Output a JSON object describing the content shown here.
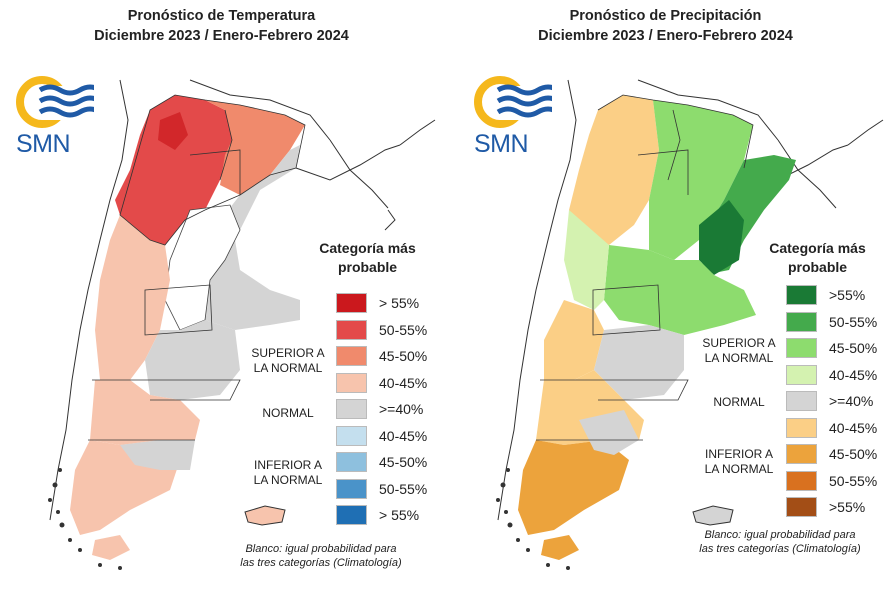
{
  "temperature": {
    "title_line1": "Pronóstico de Temperatura",
    "title_line2": "Diciembre 2023 / Enero-Febrero 2024",
    "legend_title_line1": "Categoría más",
    "legend_title_line2": "probable",
    "upper_label_line1": "SUPERIOR A",
    "upper_label_line2": "LA NORMAL",
    "normal_label": "NORMAL",
    "lower_label_line1": "INFERIOR A",
    "lower_label_line2": "LA NORMAL",
    "note_line1": "Blanco: igual probabilidad para",
    "note_line2": "las tres categorías (Climatología)",
    "legend": [
      {
        "label": "> 55%",
        "color": "#cb181d"
      },
      {
        "label": "50-55%",
        "color": "#e34a4a"
      },
      {
        "label": "45-50%",
        "color": "#f08a6c"
      },
      {
        "label": "40-45%",
        "color": "#f7c4ad"
      },
      {
        "label": ">=40%",
        "color": "#d4d4d4"
      },
      {
        "label": "40-45%",
        "color": "#c4dfee"
      },
      {
        "label": "45-50%",
        "color": "#8ec0de"
      },
      {
        "label": "50-55%",
        "color": "#4a93c9"
      },
      {
        "label": "> 55%",
        "color": "#1f6fb4"
      }
    ]
  },
  "precipitation": {
    "title_line1": "Pronóstico de Precipitación",
    "title_line2": "Diciembre 2023 / Enero-Febrero 2024",
    "legend_title_line1": "Categoría más",
    "legend_title_line2": "probable",
    "upper_label_line1": "SUPERIOR A",
    "upper_label_line2": "LA NORMAL",
    "normal_label": "NORMAL",
    "lower_label_line1": "INFERIOR A",
    "lower_label_line2": "LA NORMAL",
    "note_line1": "Blanco: igual probabilidad para",
    "note_line2": "las tres categorías (Climatología)",
    "legend": [
      {
        "label": ">55%",
        "color": "#1a7a35"
      },
      {
        "label": "50-55%",
        "color": "#44aa4c"
      },
      {
        "label": "45-50%",
        "color": "#8ddc6e"
      },
      {
        "label": "40-45%",
        "color": "#d4f2b0"
      },
      {
        "label": ">=40%",
        "color": "#d4d4d4"
      },
      {
        "label": "40-45%",
        "color": "#fbcf86"
      },
      {
        "label": "45-50%",
        "color": "#eca33c"
      },
      {
        "label": "50-55%",
        "color": "#d9711f"
      },
      {
        "label": ">55%",
        "color": "#a34e16"
      }
    ]
  },
  "logo": {
    "text": "SMN",
    "sun_color": "#f5b81c",
    "wave_color": "#1f5aa6"
  }
}
